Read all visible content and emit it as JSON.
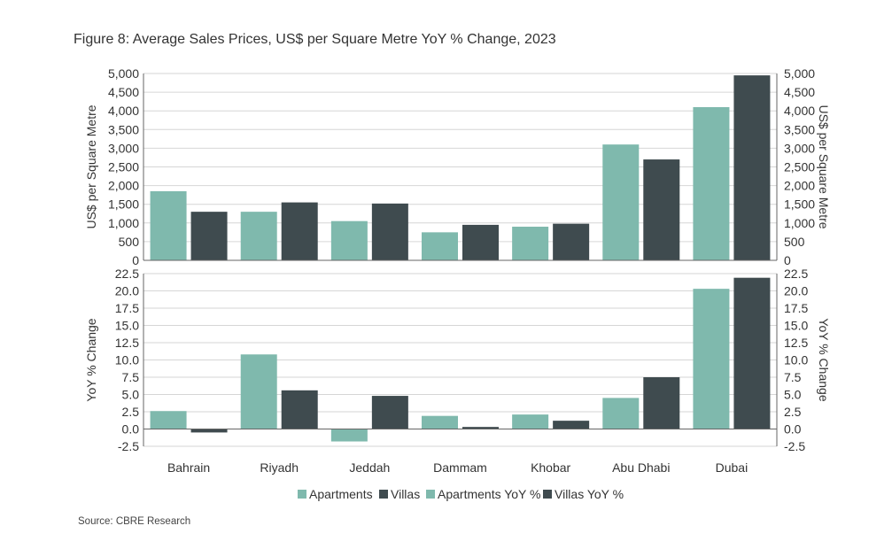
{
  "title": "Figure 8:  Average Sales Prices, US$ per Square Metre YoY % Change, 2023",
  "source": "Source: CBRE Research",
  "colors": {
    "apartments": "#7FB9AD",
    "villas": "#3F4B4F",
    "grid": "#D6D6D6",
    "axis": "#666666"
  },
  "chart_data": [
    {
      "type": "bar",
      "categories": [
        "Bahrain",
        "Riyadh",
        "Jeddah",
        "Dammam",
        "Khobar",
        "Abu Dhabi",
        "Dubai"
      ],
      "series": [
        {
          "name": "Apartments",
          "values": [
            1850,
            1300,
            1050,
            750,
            900,
            3100,
            4100
          ]
        },
        {
          "name": "Villas",
          "values": [
            1300,
            1550,
            1520,
            950,
            980,
            2700,
            4950
          ]
        }
      ],
      "ylabel_left": "US$ per Square Metre",
      "ylabel_right": "US$ per Square Metre",
      "ylim": [
        0,
        5000
      ],
      "yticks": [
        "0",
        "500",
        "1,000",
        "1,500",
        "2,000",
        "2,500",
        "3,000",
        "3,500",
        "4,000",
        "4,500",
        "5,000"
      ],
      "grid": true
    },
    {
      "type": "bar",
      "categories": [
        "Bahrain",
        "Riyadh",
        "Jeddah",
        "Dammam",
        "Khobar",
        "Abu Dhabi",
        "Dubai"
      ],
      "series": [
        {
          "name": "Apartments YoY %",
          "values": [
            2.6,
            10.8,
            -1.8,
            1.9,
            2.1,
            4.5,
            20.3
          ]
        },
        {
          "name": "Villas YoY %",
          "values": [
            -0.5,
            5.6,
            4.8,
            0.3,
            1.2,
            7.5,
            21.9
          ]
        }
      ],
      "ylabel_left": "YoY % Change",
      "ylabel_right": "YoY % Change",
      "ylim": [
        -2.5,
        22.5
      ],
      "yticks": [
        "-2.5",
        "0.0",
        "2.5",
        "5.0",
        "7.5",
        "10.0",
        "12.5",
        "15.0",
        "17.5",
        "20.0",
        "22.5"
      ],
      "grid": true,
      "legend": {
        "position": "bottom",
        "entries": [
          "Apartments",
          "Villas",
          "Apartments YoY %",
          "Villas YoY %"
        ]
      }
    }
  ]
}
